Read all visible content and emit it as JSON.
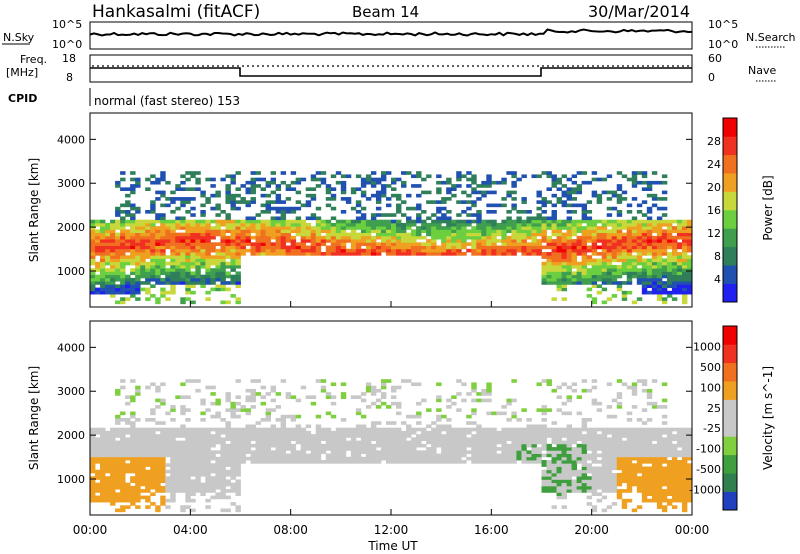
{
  "header": {
    "station": "Hankasalmi (fitACF)",
    "beam": "Beam 14",
    "date": "30/Mar/2014"
  },
  "noise_panel": {
    "left_label": "N.Sky",
    "right_label": "N.Search",
    "left_ticks": [
      "10^5",
      "10^0"
    ],
    "right_ticks": [
      "10^5",
      "10^0"
    ]
  },
  "freq_panel": {
    "left_label_1": "Freq.",
    "left_label_2": "[MHz]",
    "right_label": "Nave",
    "left_ticks": [
      "18",
      "8"
    ],
    "right_ticks": [
      "60",
      "0"
    ]
  },
  "cpid_panel": {
    "label": "CPID",
    "mode_text": "normal (fast stereo) 153"
  },
  "chart_data": [
    {
      "type": "heatmap",
      "title": "Power",
      "xlabel": "Time UT",
      "ylabel": "Slant Range [km]",
      "ylim": [
        180,
        4600
      ],
      "y_ticks": [
        "4000",
        "3000",
        "2000",
        "1000"
      ],
      "colorbar_label": "Power [dB]",
      "colorbar_ticks": [
        "28",
        "24",
        "20",
        "16",
        "12",
        "8",
        "4"
      ],
      "colorbar_colors": [
        "#2020f0",
        "#2050b0",
        "#2f7f5a",
        "#3f9f4f",
        "#6bcf3f",
        "#c8d83a",
        "#f0a020",
        "#f07020",
        "#f03020",
        "#f00000"
      ],
      "bands": [
        {
          "name": "main-echo",
          "x_start_hours": 0,
          "x_end_hours": 24,
          "range_km": [
            800,
            2200
          ]
        },
        {
          "name": "upper-echo",
          "x_start_hours": 1,
          "x_end_hours": 23,
          "range_km": [
            1900,
            3400
          ]
        }
      ]
    },
    {
      "type": "heatmap",
      "title": "Velocity",
      "xlabel": "Time UT",
      "ylabel": "Slant Range [km]",
      "ylim": [
        180,
        4600
      ],
      "y_ticks": [
        "4000",
        "3000",
        "2000",
        "1000"
      ],
      "colorbar_label": "Velocity [m s^-1]",
      "colorbar_ticks": [
        "1000",
        "500",
        "100",
        "25",
        "-25",
        "-100",
        "-500",
        "-1000"
      ],
      "colorbar_colors": [
        "#2040c0",
        "#2f7f4f",
        "#3f9f3f",
        "#7fcf3f",
        "#c8c8c8",
        "#c8c8c8",
        "#f0a020",
        "#f07020",
        "#f03020",
        "#f00000"
      ]
    }
  ],
  "x_axis": {
    "ticks": [
      "00:00",
      "04:00",
      "08:00",
      "12:00",
      "16:00",
      "20:00",
      "00:00"
    ],
    "label": "Time UT"
  }
}
